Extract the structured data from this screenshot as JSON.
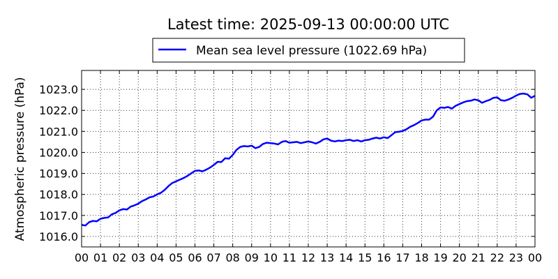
{
  "chart_data": {
    "type": "line",
    "title": "Latest time: 2025-09-13 00:00:00 UTC",
    "xlabel": "",
    "ylabel": "Atmospheric pressure (hPa)",
    "xlim": [
      0,
      24
    ],
    "ylim": [
      1015.5,
      1023.9
    ],
    "grid": true,
    "legend_position": "top-center",
    "x_tick_labels": [
      "00",
      "01",
      "02",
      "03",
      "04",
      "05",
      "06",
      "07",
      "08",
      "09",
      "10",
      "11",
      "12",
      "13",
      "14",
      "15",
      "16",
      "17",
      "18",
      "19",
      "20",
      "21",
      "22",
      "23",
      "00"
    ],
    "y_ticks": [
      1016.0,
      1017.0,
      1018.0,
      1019.0,
      1020.0,
      1021.0,
      1022.0,
      1023.0
    ],
    "y_tick_labels": [
      "1016.0",
      "1017.0",
      "1018.0",
      "1019.0",
      "1020.0",
      "1021.0",
      "1022.0",
      "1023.0"
    ],
    "series": [
      {
        "name": "Mean sea level pressure (1022.69 hPa)",
        "color": "#0000ff",
        "x": [
          0.0,
          0.2,
          0.4,
          0.6,
          0.8,
          1.0,
          1.2,
          1.4,
          1.6,
          1.8,
          2.0,
          2.2,
          2.4,
          2.6,
          2.8,
          3.0,
          3.2,
          3.4,
          3.6,
          3.8,
          4.0,
          4.2,
          4.4,
          4.6,
          4.8,
          5.0,
          5.2,
          5.4,
          5.6,
          5.8,
          6.0,
          6.2,
          6.4,
          6.6,
          6.8,
          7.0,
          7.2,
          7.4,
          7.6,
          7.8,
          8.0,
          8.2,
          8.4,
          8.6,
          8.8,
          9.0,
          9.2,
          9.4,
          9.6,
          9.8,
          10.0,
          10.2,
          10.4,
          10.6,
          10.8,
          11.0,
          11.2,
          11.4,
          11.6,
          11.8,
          12.0,
          12.2,
          12.4,
          12.6,
          12.8,
          13.0,
          13.2,
          13.4,
          13.6,
          13.8,
          14.0,
          14.2,
          14.4,
          14.6,
          14.8,
          15.0,
          15.2,
          15.4,
          15.6,
          15.8,
          16.0,
          16.2,
          16.4,
          16.6,
          16.8,
          17.0,
          17.2,
          17.4,
          17.6,
          17.8,
          18.0,
          18.2,
          18.4,
          18.6,
          18.8,
          19.0,
          19.2,
          19.4,
          19.6,
          19.8,
          20.0,
          20.2,
          20.4,
          20.6,
          20.8,
          21.0,
          21.2,
          21.4,
          21.6,
          21.8,
          22.0,
          22.2,
          22.4,
          22.6,
          22.8,
          23.0,
          23.2,
          23.4,
          23.6,
          23.8,
          24.0
        ],
        "y": [
          1016.55,
          1016.52,
          1016.68,
          1016.74,
          1016.72,
          1016.84,
          1016.88,
          1016.9,
          1017.05,
          1017.12,
          1017.24,
          1017.3,
          1017.28,
          1017.42,
          1017.48,
          1017.56,
          1017.68,
          1017.76,
          1017.86,
          1017.9,
          1018.0,
          1018.08,
          1018.22,
          1018.4,
          1018.54,
          1018.62,
          1018.7,
          1018.78,
          1018.88,
          1019.0,
          1019.12,
          1019.14,
          1019.1,
          1019.18,
          1019.28,
          1019.4,
          1019.55,
          1019.54,
          1019.72,
          1019.7,
          1019.88,
          1020.12,
          1020.26,
          1020.3,
          1020.28,
          1020.32,
          1020.2,
          1020.26,
          1020.4,
          1020.46,
          1020.44,
          1020.42,
          1020.38,
          1020.5,
          1020.54,
          1020.46,
          1020.48,
          1020.5,
          1020.44,
          1020.48,
          1020.52,
          1020.48,
          1020.42,
          1020.5,
          1020.62,
          1020.66,
          1020.56,
          1020.52,
          1020.56,
          1020.54,
          1020.58,
          1020.6,
          1020.54,
          1020.58,
          1020.52,
          1020.58,
          1020.6,
          1020.66,
          1020.7,
          1020.66,
          1020.72,
          1020.68,
          1020.82,
          1020.96,
          1020.98,
          1021.02,
          1021.1,
          1021.22,
          1021.3,
          1021.4,
          1021.52,
          1021.56,
          1021.56,
          1021.7,
          1022.0,
          1022.14,
          1022.12,
          1022.16,
          1022.08,
          1022.22,
          1022.3,
          1022.38,
          1022.44,
          1022.46,
          1022.52,
          1022.48,
          1022.36,
          1022.44,
          1022.5,
          1022.6,
          1022.62,
          1022.48,
          1022.46,
          1022.52,
          1022.6,
          1022.7,
          1022.78,
          1022.8,
          1022.76,
          1022.6,
          1022.69
        ]
      }
    ]
  }
}
